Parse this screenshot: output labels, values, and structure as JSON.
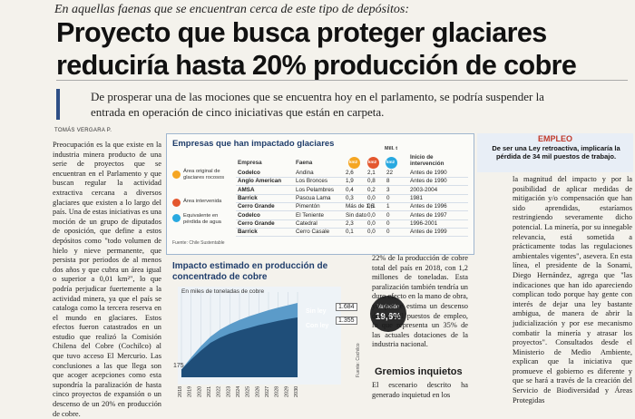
{
  "kicker": "En aquellas faenas que se encuentran cerca de este tipo de depósitos:",
  "headline": "Proyecto que busca proteger glaciares reduciría hasta 20% producción de cobre",
  "deck": "De prosperar una de las mociones que se encuentra hoy en el parlamento, se podría suspender la entrada en operación de cinco iniciativas que están en carpeta.",
  "byline": "TOMÁS VERGARA P.",
  "col1": "Preocupación es la que existe en la industria minera producto de una serie de proyectos que se encuentran en el Parlamento y que buscan regular la actividad extractiva cercana a diversos glaciares que existen a lo largo del país. Una de estas iniciativas es una moción de un grupo de diputados de oposición, que define a estos depósitos como \"todo volumen de hielo y nieve permanente, que persista por periodos de al menos dos años y que cubra un área igual o superior a 0,01 km²\", lo que podría perjudicar fuertemente a la actividad minera, ya que el país se cataloga como la tercera reserva en el mundo en glaciares. Estos efectos fueron catastrados en un estudio que realizó la Comisión Chilena del Cobre (Cochilco) al que tuvo acceso El Mercurio. Las conclusiones a las que llega son que acoger acepciones como esta supondría la paralización de hasta cinco proyectos de expansión o un descenso de un 20% en producción de cobre.",
  "table": {
    "title": "Empresas que han impactado glaciares",
    "headers": {
      "empresa": "Empresa",
      "faena": "Faena",
      "km2_a": "km2",
      "km2_b": "km2",
      "km2_c": "km2",
      "mill": "Mill. t",
      "inicio": "Inicio de intervención"
    },
    "rows": [
      {
        "empresa": "Codelco",
        "faena": "Andina",
        "a": "2,6",
        "b": "2,1",
        "c": "22",
        "inicio": "Antes de 1990"
      },
      {
        "empresa": "Anglo American",
        "faena": "Los Bronces",
        "a": "1,9",
        "b": "0,8",
        "c": "8",
        "inicio": "Antes de 1990"
      },
      {
        "empresa": "AMSA",
        "faena": "Los Pelambres",
        "a": "0,4",
        "b": "0,2",
        "c": "3",
        "inicio": "2003-2004"
      },
      {
        "empresa": "Barrick",
        "faena": "Pascua Lama",
        "a": "0,3",
        "b": "0,0",
        "c": "0",
        "inicio": "1981"
      },
      {
        "empresa": "Cerro Grande",
        "faena": "Pimentón",
        "a": "Más de 1,6",
        "b": "0,1",
        "c": "1",
        "inicio": "Antes de 1996"
      },
      {
        "empresa": "Codelco",
        "faena": "El Teniente",
        "a": "Sin dato",
        "b": "0,0",
        "c": "0",
        "inicio": "Antes de 1997"
      },
      {
        "empresa": "Cerro Grande",
        "faena": "Catedral",
        "a": "2,3",
        "b": "0,0",
        "c": "0",
        "inicio": "1996-2001"
      },
      {
        "empresa": "Barrick",
        "faena": "Cerro Casale",
        "a": "0,1",
        "b": "0,0",
        "c": "0",
        "inicio": "Antes de 1999"
      }
    ],
    "legend": [
      {
        "label": "Área original de glaciares rocosos",
        "color": "#f5a623"
      },
      {
        "label": "Área intervenida",
        "color": "#e4572e"
      },
      {
        "label": "Equivalente en pérdida de agua",
        "color": "#29a9e0"
      }
    ],
    "source": "Fuente: Chile Sustentable"
  },
  "chart": {
    "title": "Impacto estimado en producción de concentrado de cobre",
    "unit_note": "En miles de toneladas de cobre",
    "start_label": "175",
    "label_sin": "Sin ley",
    "label_con": "Con ley",
    "end_sin": "1.684",
    "end_con": "1.355",
    "variation_label": "Variación",
    "variation_value": "19,6%",
    "source": "Fuente: Cochilco"
  },
  "chart_data": {
    "type": "area",
    "title": "Impacto estimado en producción de concentrado de cobre",
    "ylabel": "En miles de toneladas de cobre",
    "x": [
      "2018",
      "2019",
      "2020",
      "2021",
      "2022",
      "2023",
      "2024",
      "2025",
      "2026",
      "2027",
      "2028",
      "2029",
      "2030"
    ],
    "series": [
      {
        "name": "Sin ley",
        "values": [
          175,
          450,
          700,
          920,
          1080,
          1200,
          1300,
          1380,
          1450,
          1520,
          1580,
          1630,
          1684
        ]
      },
      {
        "name": "Con ley",
        "values": [
          175,
          400,
          600,
          780,
          900,
          990,
          1060,
          1120,
          1180,
          1230,
          1280,
          1320,
          1355
        ]
      }
    ]
  },
  "col_mid": "22% de la producción de cobre total del país en 2018, con 1,2 millones de toneladas. Esta paralización también tendría un duro efecto en la mano de obra, ya que se estima un descenso de 34 mil puestos de empleo, lo que representa un 35% de las actuales dotaciones de la industria nacional.",
  "gremios_title": "Gremios inquietos",
  "col_gremios": "El escenario descrito ha generado inquietud en los",
  "empleo": {
    "head": "EMPLEO",
    "text": "De ser una Ley retroactiva, implicaría la pérdida de 34 mil puestos de trabajo."
  },
  "col_right": "la magnitud del impacto y por la posibilidad de aplicar medidas de mitigación y/o compensación que han sido aprendidas, estaríamos restringiendo severamente dicho potencial. La minería, por su innegable relevancia, está sometida a prácticamente todas las regulaciones ambientales vigentes\", asevera. En esta línea, el presidente de la Sonami, Diego Hernández, agrega que \"las indicaciones que han ido apareciendo complican todo porque hay gente con interés de dejar una ley bastante ambigua, de manera de abrir la judicialización y por ese mecanismo combatir la minería y atrasar los proyectos\". Consultados desde el Ministerio de Medio Ambiente, explican que la iniciativa que promueve el gobierno es diferente y que se hará a través de la creación del Servicio de Biodiversidad y Áreas Protegidas"
}
